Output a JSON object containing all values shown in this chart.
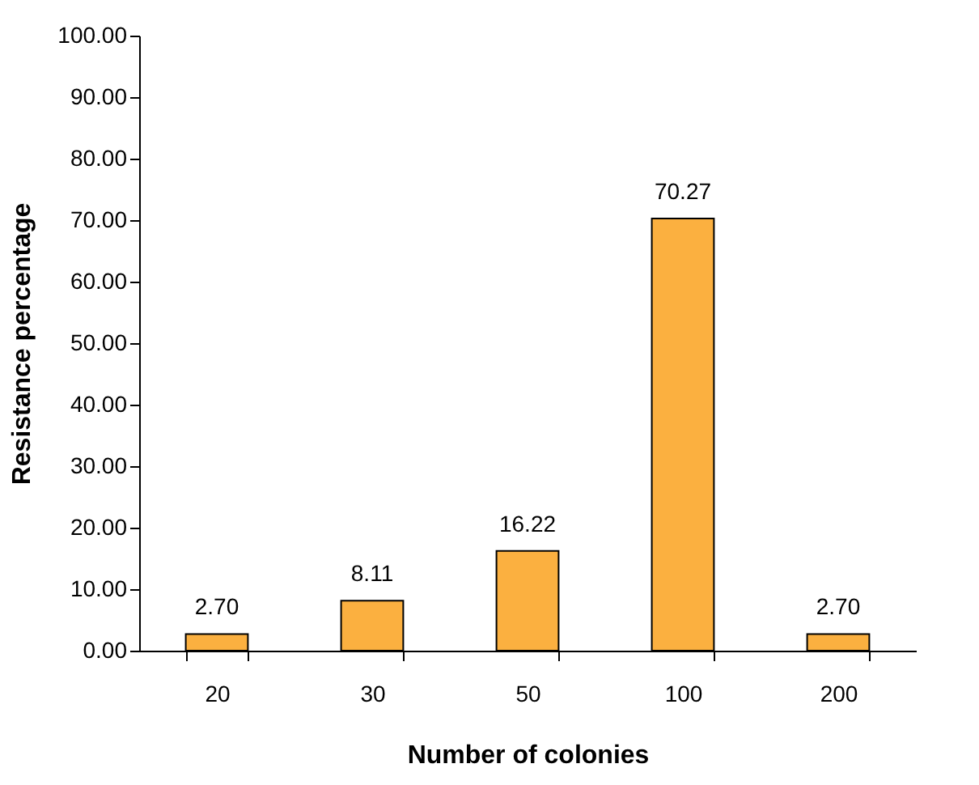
{
  "chart_data": {
    "type": "bar",
    "xlabel": "Number of colonies",
    "ylabel": "Resistance percentage",
    "categories": [
      "20",
      "30",
      "50",
      "100",
      "200"
    ],
    "values": [
      2.7,
      8.11,
      16.22,
      70.27,
      2.7
    ],
    "value_labels": [
      "2.70",
      "8.11",
      "16.22",
      "70.27",
      "2.70"
    ],
    "color": "#fbb040",
    "ylim": [
      0,
      100
    ],
    "yticks": [
      {
        "value": 0,
        "label": "0.00"
      },
      {
        "value": 10,
        "label": "10.00"
      },
      {
        "value": 20,
        "label": "20.00"
      },
      {
        "value": 30,
        "label": "30.00"
      },
      {
        "value": 40,
        "label": "40.00"
      },
      {
        "value": 50,
        "label": "50.00"
      },
      {
        "value": 60,
        "label": "60.00"
      },
      {
        "value": 70,
        "label": "70.00"
      },
      {
        "value": 80,
        "label": "80.00"
      },
      {
        "value": 90,
        "label": "90.00"
      },
      {
        "value": 100,
        "label": "100.00"
      }
    ],
    "grid": false
  }
}
